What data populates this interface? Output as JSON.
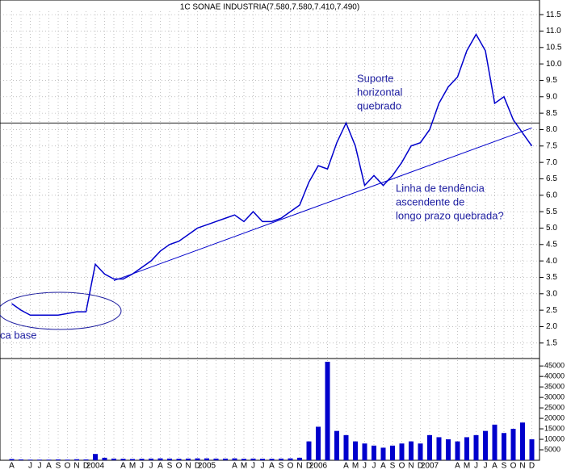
{
  "chart_data": [
    {
      "type": "line",
      "title": "1C SONAE INDUSTRIA(7.580,7.580,7.410,7.490)",
      "categories": [
        "A",
        null,
        "J",
        "J",
        "A",
        "S",
        "O",
        "N",
        "D",
        "2004",
        null,
        null,
        "A",
        "M",
        "J",
        "J",
        "A",
        "S",
        "O",
        "N",
        "D",
        "2005",
        null,
        null,
        "A",
        "M",
        "J",
        "J",
        "A",
        "S",
        "O",
        "N",
        "D",
        "2006",
        null,
        null,
        "A",
        "M",
        "J",
        "J",
        "A",
        "S",
        "O",
        "N",
        "D",
        "2007",
        null,
        null,
        "A",
        "M",
        "J",
        "J",
        "A",
        "S",
        "O",
        "N",
        "D"
      ],
      "series": [
        {
          "color": "#0000cc",
          "values": [
            2.7,
            2.5,
            2.35,
            2.35,
            2.35,
            2.35,
            2.4,
            2.45,
            2.45,
            3.9,
            3.6,
            3.45,
            3.45,
            3.6,
            3.8,
            4.0,
            4.3,
            4.5,
            4.6,
            4.8,
            5.0,
            5.1,
            5.2,
            5.3,
            5.4,
            5.2,
            5.5,
            5.2,
            5.2,
            5.3,
            5.5,
            5.7,
            6.4,
            6.9,
            6.8,
            7.6,
            8.2,
            7.5,
            6.3,
            6.6,
            6.3,
            6.6,
            7.0,
            7.5,
            7.6,
            8.0,
            8.8,
            9.3,
            9.6,
            10.4,
            10.9,
            10.4,
            8.8,
            9.0,
            8.3,
            7.9,
            7.5
          ]
        }
      ],
      "support_level": 8.2,
      "trendline": [
        null,
        null,
        null,
        null,
        null,
        null,
        null,
        null,
        null,
        null,
        null,
        3.4,
        null,
        null,
        null,
        null,
        null,
        null,
        null,
        null,
        null,
        null,
        null,
        null,
        null,
        null,
        null,
        null,
        null,
        null,
        null,
        null,
        null,
        null,
        null,
        null,
        null,
        null,
        null,
        null,
        null,
        null,
        null,
        null,
        null,
        null,
        null,
        null,
        null,
        null,
        null,
        null,
        null,
        null,
        null,
        null,
        8.05
      ],
      "ylim": [
        1.2,
        11.7
      ],
      "yticks": [
        1.5,
        {
          "value": 2,
          "label": "2.0"
        },
        2.5,
        {
          "value": 3,
          "label": "3.0"
        },
        3.5,
        {
          "value": 4,
          "label": "4.0"
        },
        4.5,
        {
          "value": 5,
          "label": "5.0"
        },
        5.5,
        {
          "value": 6,
          "label": "6.0"
        },
        6.5,
        {
          "value": 7,
          "label": "7.0"
        },
        7.5,
        {
          "value": 8,
          "label": "8.0"
        },
        8.5,
        {
          "value": 9,
          "label": "9.0"
        },
        9.5,
        {
          "value": 10,
          "label": "10.0"
        },
        10.5,
        {
          "value": 11,
          "label": "11.0"
        },
        11.5
      ],
      "annotations": [
        "Suporte",
        "horizontal",
        "quebrado",
        "Linha de tendência",
        "ascendente de",
        "longo prazo quebrada?",
        "ca base"
      ]
    },
    {
      "type": "bar",
      "color": "#0000cc",
      "values": [
        600,
        400,
        300,
        300,
        300,
        400,
        300,
        500,
        400,
        3000,
        1200,
        800,
        700,
        600,
        700,
        800,
        900,
        800,
        700,
        800,
        900,
        900,
        800,
        800,
        900,
        700,
        800,
        700,
        700,
        800,
        900,
        1200,
        9000,
        16000,
        47000,
        14000,
        12000,
        9000,
        8000,
        7000,
        6000,
        7000,
        8000,
        9000,
        8000,
        12000,
        11000,
        10000,
        9000,
        11000,
        12000,
        14000,
        17000,
        13000,
        15000,
        18000,
        10000
      ],
      "ylim": [
        0,
        47000
      ],
      "yticks": [
        5000,
        10000,
        15000,
        20000,
        25000,
        30000,
        35000,
        40000,
        45000
      ]
    }
  ]
}
